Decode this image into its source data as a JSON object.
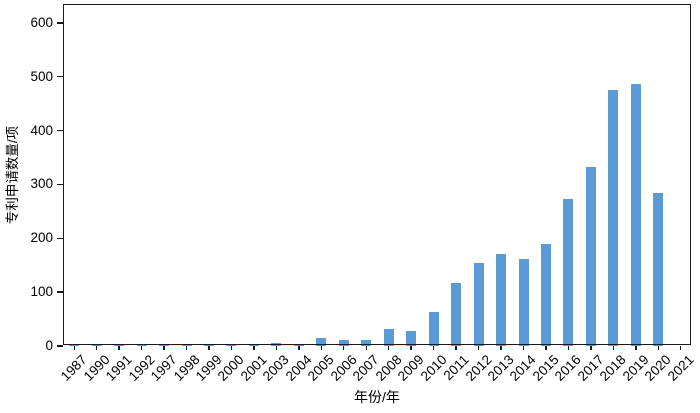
{
  "chart_data": {
    "type": "bar",
    "title": "",
    "xlabel": "年份/年",
    "ylabel": "专利申请数量/项",
    "categories": [
      "1987",
      "1990",
      "1991",
      "1992",
      "1997",
      "1998",
      "1999",
      "2000",
      "2001",
      "2003",
      "2004",
      "2005",
      "2006",
      "2007",
      "2008",
      "2009",
      "2010",
      "2011",
      "2012",
      "2013",
      "2014",
      "2015",
      "2016",
      "2017",
      "2018",
      "2019",
      "2020",
      "2021"
    ],
    "values": [
      1,
      2,
      4,
      2,
      3,
      2,
      1,
      1,
      1,
      5,
      2,
      15,
      12,
      11,
      32,
      27,
      64,
      117,
      154,
      170,
      162,
      190,
      273,
      333,
      476,
      487,
      285,
      0
    ],
    "yticks": [
      0,
      100,
      200,
      300,
      400,
      500,
      600
    ],
    "ylim": [
      0,
      635
    ],
    "bar_color": "#5B9BD5",
    "axis_color": "#1a1a1a",
    "grid": false,
    "legend_position": "none"
  }
}
